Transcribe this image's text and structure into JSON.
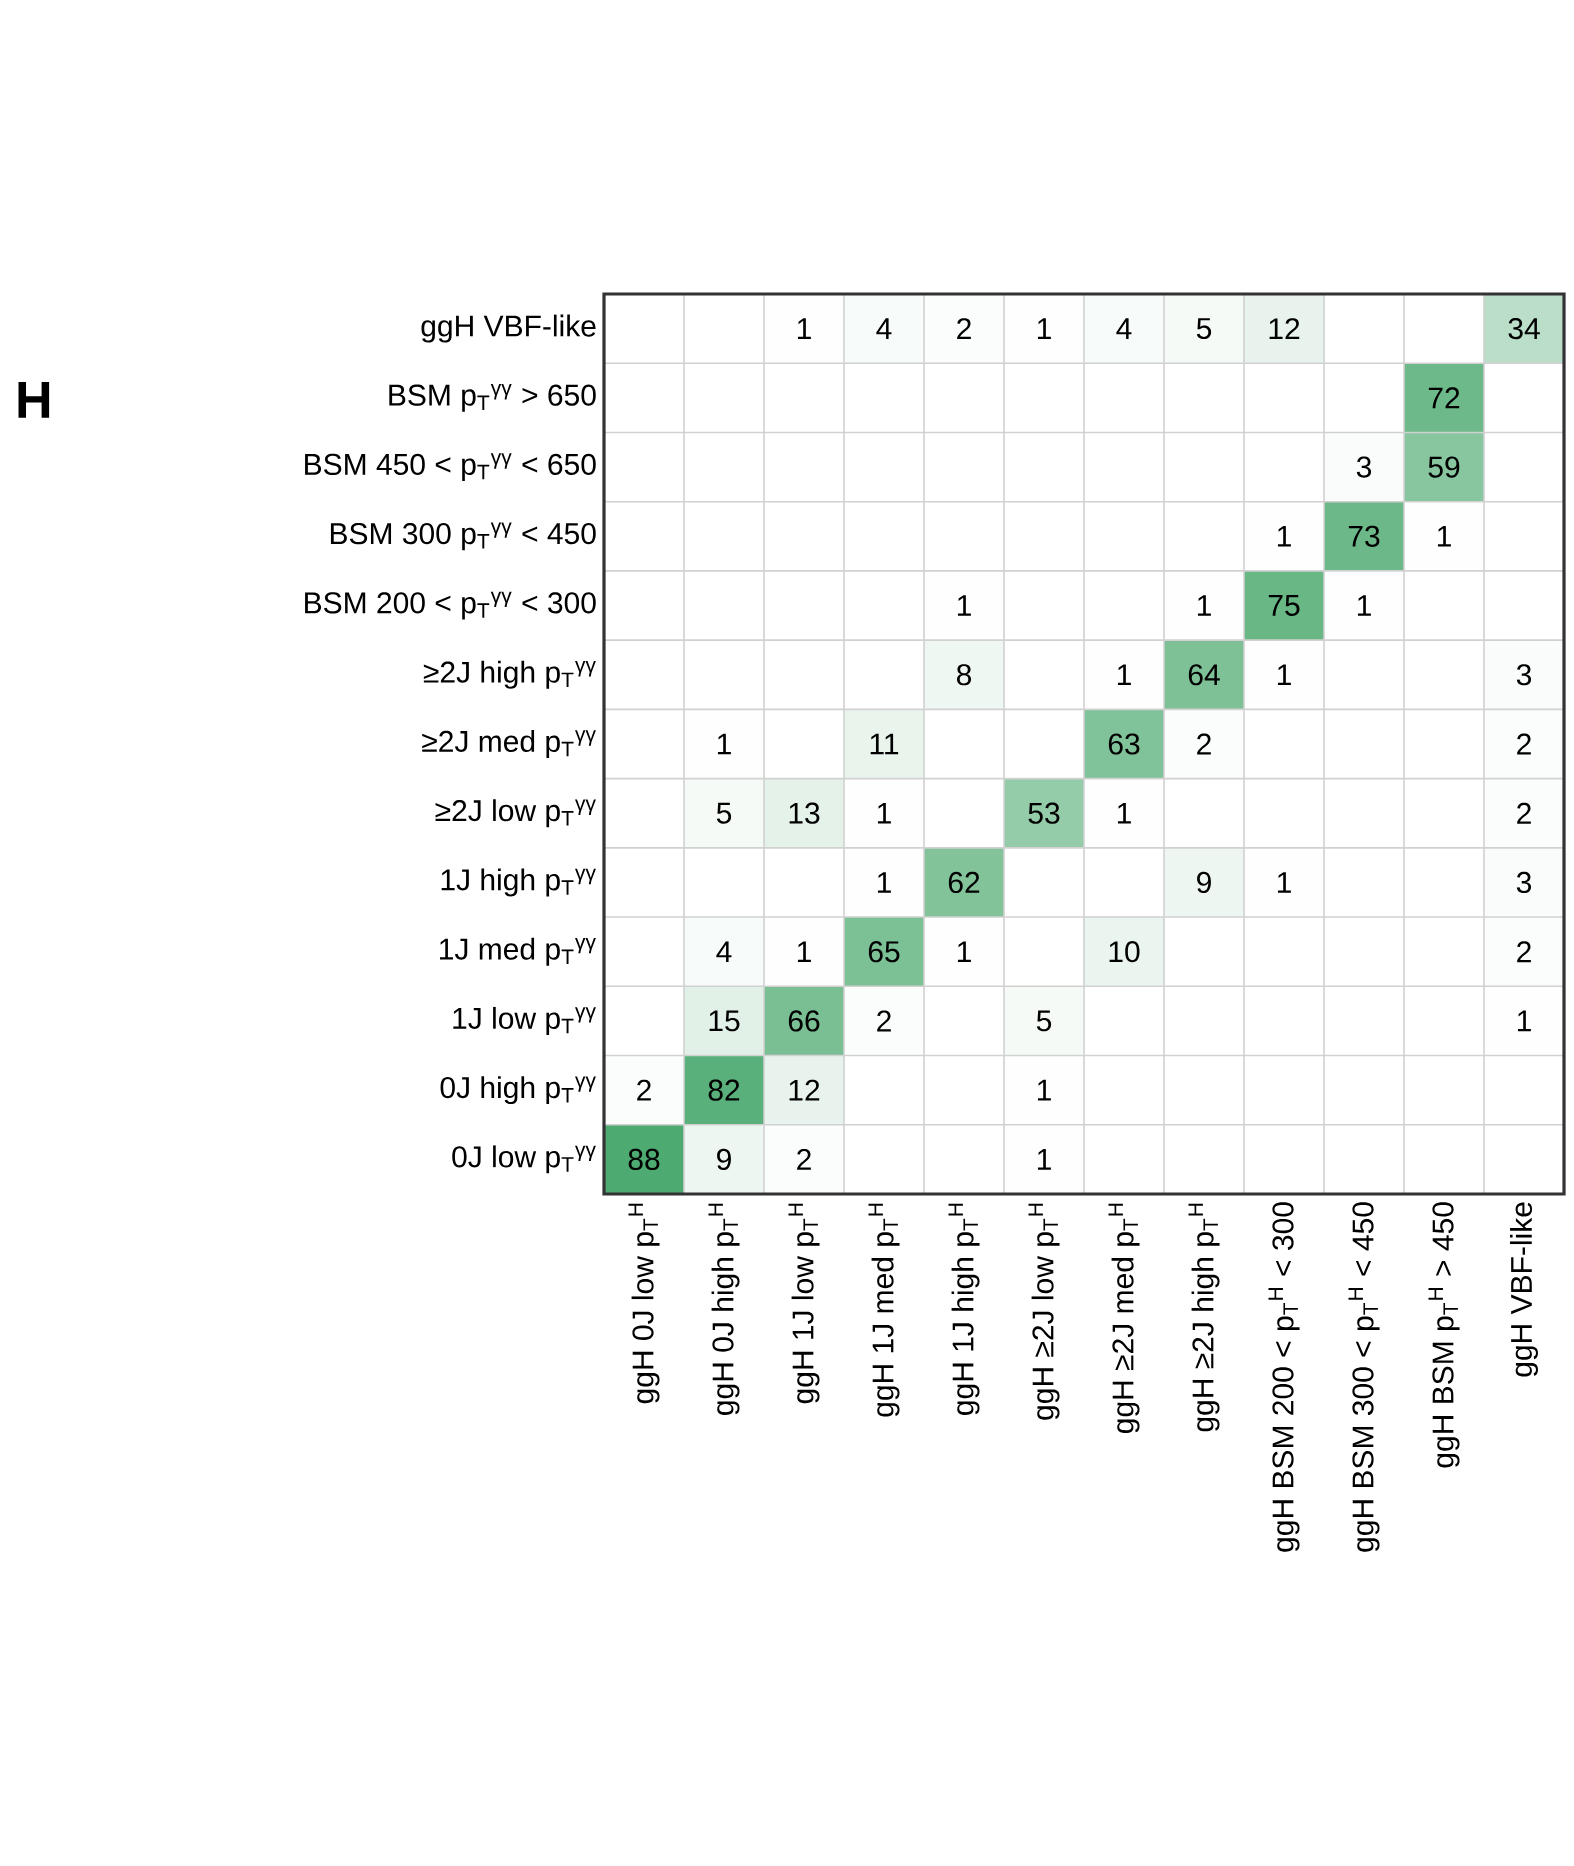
{
  "chart_data": {
    "type": "heatmap",
    "categories": [
      "ggH 0J low p$_{T}$$^{H}$",
      "ggH 0J high p$_{T}$$^{H}$",
      "ggH 1J low p$_{T}$$^{H}$",
      "ggH 1J med p$_{T}$$^{H}$",
      "ggH 1J high p$_{T}$$^{H}$",
      "ggH ≥2J low p$_{T}$$^{H}$",
      "ggH ≥2J med p$_{T}$$^{H}$",
      "ggH ≥2J high p$_{T}$$^{H}$",
      "ggH BSM 200 < p$_{T}$$^{H}$ < 300",
      "ggH BSM 300 < p$_{T}$$^{H}$ < 450",
      "ggH BSM p$_{T}$$^{H}$ > 450",
      "ggH VBF-like"
    ],
    "y_categories": [
      "ggH VBF-like",
      "BSM p$_{T}$$^{γγ}$ > 650",
      "BSM 450 < p$_{T}$$^{γγ}$ < 650",
      "BSM 300 p$_{T}$$^{γγ}$ < 450",
      "BSM 200 < p$_{T}$$^{γγ}$ < 300",
      "≥2J high p$_{T}$$^{γγ}$",
      "≥2J med p$_{T}$$^{γγ}$",
      "≥2J low p$_{T}$$^{γγ}$",
      "1J high p$_{T}$$^{γγ}$",
      "1J med p$_{T}$$^{γγ}$",
      "1J low p$_{T}$$^{γγ}$",
      "0J high p$_{T}$$^{γγ}$",
      "0J low p$_{T}$$^{γγ}$"
    ],
    "cells": [
      [
        null,
        null,
        1,
        4,
        2,
        1,
        4,
        5,
        12,
        null,
        null,
        34
      ],
      [
        null,
        null,
        null,
        null,
        null,
        null,
        null,
        null,
        null,
        null,
        72,
        null
      ],
      [
        null,
        null,
        null,
        null,
        null,
        null,
        null,
        null,
        null,
        3,
        59,
        null
      ],
      [
        null,
        null,
        null,
        null,
        null,
        null,
        null,
        null,
        1,
        73,
        1,
        null
      ],
      [
        null,
        null,
        null,
        null,
        1,
        null,
        null,
        1,
        75,
        1,
        null,
        null
      ],
      [
        null,
        null,
        null,
        null,
        8,
        null,
        1,
        64,
        1,
        null,
        null,
        3
      ],
      [
        null,
        1,
        null,
        11,
        null,
        null,
        63,
        2,
        null,
        null,
        null,
        2
      ],
      [
        null,
        5,
        13,
        1,
        null,
        53,
        1,
        null,
        null,
        null,
        null,
        2
      ],
      [
        null,
        null,
        null,
        1,
        62,
        null,
        null,
        9,
        1,
        null,
        null,
        3
      ],
      [
        null,
        4,
        1,
        65,
        1,
        null,
        10,
        null,
        null,
        null,
        null,
        2
      ],
      [
        null,
        15,
        66,
        2,
        null,
        5,
        null,
        null,
        null,
        null,
        null,
        1
      ],
      [
        2,
        82,
        12,
        null,
        null,
        1,
        null,
        null,
        null,
        null,
        null,
        null
      ],
      [
        88,
        9,
        2,
        null,
        null,
        1,
        null,
        null,
        null,
        null,
        null,
        null
      ]
    ],
    "data_labels": true,
    "annotations": [
      "H"
    ]
  }
}
